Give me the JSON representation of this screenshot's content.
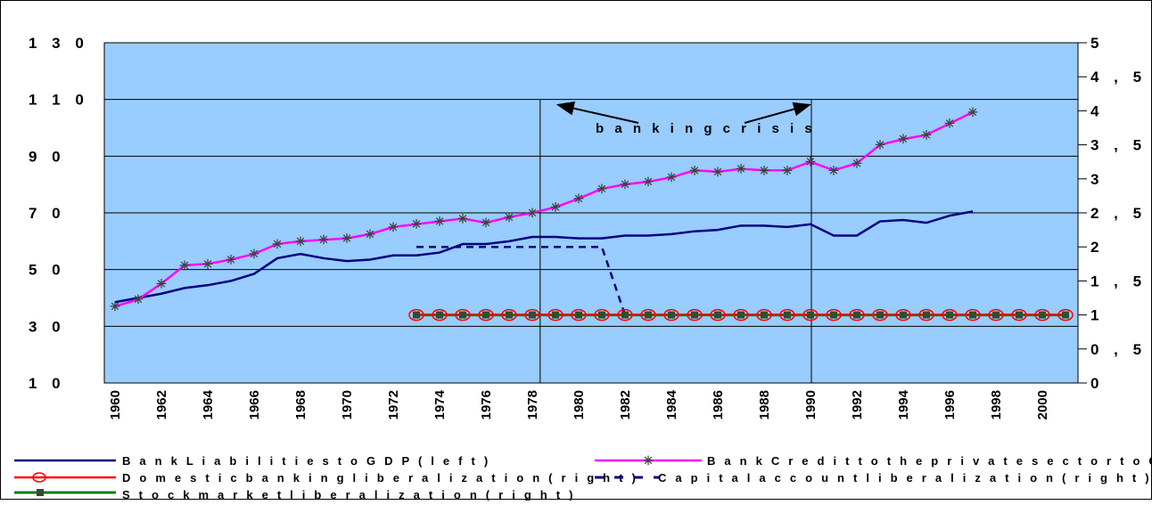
{
  "colors": {
    "plot_bg": "#99CCFF",
    "liabilities": "#000080",
    "credit": "#FF00FF",
    "markers_x": "#404040",
    "domestic_circle": "#FF0000",
    "stock": "#008000",
    "stock_marker": "#2F4F2F",
    "capital": "#000080"
  },
  "chart_data": {
    "type": "line",
    "left_axis": {
      "ticks": [
        "1 3 0",
        "1 1 0",
        "9 0",
        "7 0",
        "5 0",
        "3 0",
        "1 0"
      ],
      "tick_values": [
        130,
        110,
        90,
        70,
        50,
        30,
        10
      ],
      "range": [
        10,
        130
      ]
    },
    "right_axis": {
      "ticks": [
        "5",
        "4 , 5",
        "4",
        "3 , 5",
        "3",
        "2 , 5",
        "2",
        "1 , 5",
        "1",
        "0 , 5",
        "0"
      ],
      "tick_values": [
        5,
        4.5,
        4,
        3.5,
        3,
        2.5,
        2,
        1.5,
        1,
        0.5,
        0
      ],
      "range": [
        0,
        5
      ]
    },
    "x_ticks": [
      "1960",
      "1962",
      "1964",
      "1966",
      "1968",
      "1970",
      "1972",
      "1974",
      "1976",
      "1978",
      "1980",
      "1982",
      "1984",
      "1986",
      "1988",
      "1990",
      "1992",
      "1994",
      "1996",
      "1998",
      "2000"
    ],
    "x_range": [
      1960,
      2002
    ],
    "grid": "horizontal",
    "series": [
      {
        "name": "Bank Liabilities to GDP (left)",
        "axis": "left",
        "x": [
          1960,
          1961,
          1962,
          1963,
          1964,
          1965,
          1966,
          1967,
          1968,
          1969,
          1970,
          1971,
          1972,
          1973,
          1974,
          1975,
          1976,
          1977,
          1978,
          1979,
          1980,
          1981,
          1982,
          1983,
          1984,
          1985,
          1986,
          1987,
          1988,
          1989,
          1990,
          1991,
          1992,
          1993,
          1994,
          1995,
          1996,
          1997
        ],
        "values": [
          38.5,
          40,
          41.5,
          43.5,
          44.5,
          46,
          48.5,
          54,
          55.5,
          54,
          53,
          53.5,
          55,
          55,
          56,
          59,
          59,
          60,
          61.5,
          61.5,
          61,
          61,
          62,
          62,
          62.5,
          63.5,
          64,
          65.5,
          65.5,
          65,
          66,
          62,
          62,
          67,
          67.5,
          66.5,
          69,
          70.5
        ]
      },
      {
        "name": "Bank Credit to the private sector to GDP (left)",
        "axis": "left",
        "x": [
          1960,
          1961,
          1962,
          1963,
          1964,
          1965,
          1966,
          1967,
          1968,
          1969,
          1970,
          1971,
          1972,
          1973,
          1974,
          1975,
          1976,
          1977,
          1978,
          1979,
          1980,
          1981,
          1982,
          1983,
          1984,
          1985,
          1986,
          1987,
          1988,
          1989,
          1990,
          1991,
          1992,
          1993,
          1994,
          1995,
          1996,
          1997
        ],
        "values": [
          37,
          39.5,
          45,
          51.5,
          52,
          53.5,
          55.5,
          59,
          60,
          60.5,
          61,
          62.5,
          65,
          66,
          67,
          68,
          66.5,
          68.5,
          70,
          72,
          75,
          78.5,
          80,
          81,
          82.5,
          85,
          84.5,
          85.5,
          85,
          85,
          88,
          85,
          87.5,
          94,
          96,
          97.5,
          101.5,
          105.5
        ]
      },
      {
        "name": "Domestic banking liberalization (right)",
        "axis": "right",
        "x": [
          1973,
          1974,
          1975,
          1976,
          1977,
          1978,
          1979,
          1980,
          1981,
          1982,
          1983,
          1984,
          1985,
          1986,
          1987,
          1988,
          1989,
          1990,
          1991,
          1992,
          1993,
          1994,
          1995,
          1996,
          1997,
          1998,
          1999,
          2000,
          2001
        ],
        "values": [
          1,
          1,
          1,
          1,
          1,
          1,
          1,
          1,
          1,
          1,
          1,
          1,
          1,
          1,
          1,
          1,
          1,
          1,
          1,
          1,
          1,
          1,
          1,
          1,
          1,
          1,
          1,
          1,
          1
        ]
      },
      {
        "name": "Capital account liberalization (right)",
        "axis": "right",
        "x": [
          1973,
          1974,
          1975,
          1976,
          1977,
          1978,
          1979,
          1980,
          1981,
          1982
        ],
        "values": [
          2,
          2,
          2,
          2,
          2,
          2,
          2,
          2,
          2,
          1
        ]
      },
      {
        "name": "Stock market liberalization (right)",
        "axis": "right",
        "x": [
          1973,
          1974,
          1975,
          1976,
          1977,
          1978,
          1979,
          1980,
          1981,
          1982,
          1983,
          1984,
          1985,
          1986,
          1987,
          1988,
          1989,
          1990,
          1991,
          1992,
          1993,
          1994,
          1995,
          1996,
          1997,
          1998,
          1999,
          2000,
          2001
        ],
        "values": [
          1,
          1,
          1,
          1,
          1,
          1,
          1,
          1,
          1,
          1,
          1,
          1,
          1,
          1,
          1,
          1,
          1,
          1,
          1,
          1,
          1,
          1,
          1,
          1,
          1,
          1,
          1,
          1,
          1
        ]
      }
    ],
    "vlines_x": [
      1978.8,
      1990.5
    ],
    "annotation": {
      "text": "b a n k i n g   c r i s i s",
      "arrows_to_x": [
        1978.8,
        1990.5
      ],
      "arrows_to_y": 110
    }
  },
  "legend": {
    "liabilities": "B a n k   L i a b i l i t i e s   t o   G D P   ( l e f t )",
    "credit": "B a n k   C r e d i t   t o   t h e   p r i v a t e   s e c t o r   t o   G D P   ( l e f t )",
    "domestic": "D o m e s t i c   b a n k i n g   l i b e r a l i z a t i o n   ( r i g h t )",
    "capital": "C a p i t a l   a c c o u n t   l i b e r a l i z a t i o n   ( r i g h t )",
    "stock": "S t o c k   m a r k e t   l i b e r a l i z a t i o n   ( r i g h t )"
  }
}
